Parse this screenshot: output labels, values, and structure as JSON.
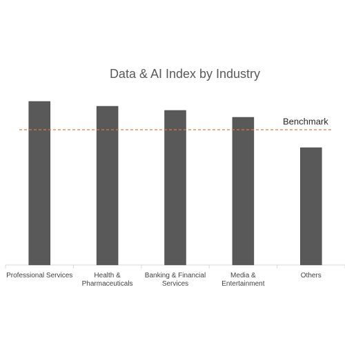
{
  "chart_data": {
    "type": "bar",
    "title": "Data & AI Index by Industry",
    "categories": [
      "Professional Services",
      "Health &\nPharmaceuticals",
      "Banking & Financial\nServices",
      "Media &\nEntertainment",
      "Others"
    ],
    "values": [
      237,
      230,
      224,
      214,
      170
    ],
    "color": "#595959",
    "ylim": [
      0,
      250
    ],
    "benchmark": {
      "label": "Benchmark",
      "value": 196,
      "color": "#e07b39"
    }
  }
}
